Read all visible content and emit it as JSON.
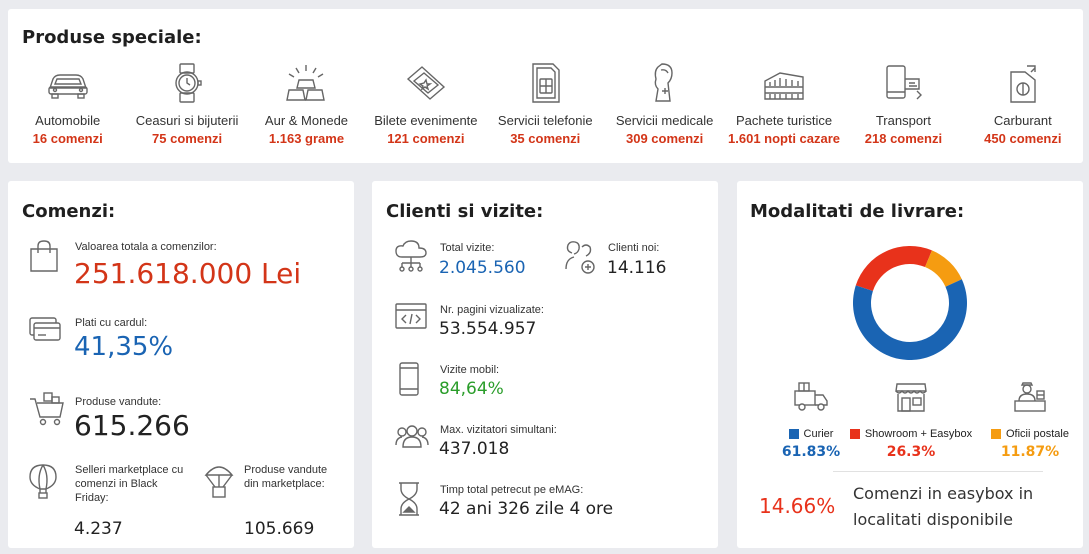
{
  "special": {
    "title": "Produse speciale:",
    "items": [
      {
        "name": "Automobile",
        "count": "16 comenzi",
        "icon": "car-icon"
      },
      {
        "name": "Ceasuri si bijuterii",
        "count": "75 comenzi",
        "icon": "watch-icon"
      },
      {
        "name": "Aur & Monede",
        "count": "1.163 grame",
        "icon": "gold-bars-icon"
      },
      {
        "name": "Bilete evenimente",
        "count": "121 comenzi",
        "icon": "ticket-icon"
      },
      {
        "name": "Servicii telefonie",
        "count": "35 comenzi",
        "icon": "sim-card-icon"
      },
      {
        "name": "Servicii medicale",
        "count": "309 comenzi",
        "icon": "medical-icon"
      },
      {
        "name": "Pachete turistice",
        "count": "1.601 nopti cazare",
        "icon": "colosseum-icon"
      },
      {
        "name": "Transport",
        "count": "218 comenzi",
        "icon": "transport-icon"
      },
      {
        "name": "Carburant",
        "count": "450 comenzi",
        "icon": "fuel-can-icon"
      }
    ]
  },
  "orders": {
    "title": "Comenzi:",
    "total_label": "Valoarea totala a comenzilor:",
    "total_value": "251.618.000 Lei",
    "card_label": "Plati cu cardul:",
    "card_value": "41,35%",
    "products_label": "Produse vandute:",
    "products_value": "615.266",
    "sellers_label": "Selleri marketplace cu comenzi in Black Friday:",
    "sellers_value": "4.237",
    "mp_label": "Produse vandute din marketplace:",
    "mp_value": "105.669"
  },
  "clients": {
    "title": "Clienti si vizite:",
    "visits_label": "Total vizite:",
    "visits_value": "2.045.560",
    "new_label": "Clienti noi:",
    "new_value": "14.116",
    "pages_label": "Nr. pagini vizualizate:",
    "pages_value": "53.554.957",
    "mobile_label": "Vizite mobil:",
    "mobile_value": "84,64%",
    "max_label": "Max. vizitatori simultani:",
    "max_value": "437.018",
    "time_label": "Timp total petrecut pe eMAG:",
    "time_value": "42 ani 326 zile 4 ore"
  },
  "delivery": {
    "title": "Modalitati de livrare:",
    "items": [
      {
        "name": "Curier",
        "pct": "61.83%",
        "value": 61.83,
        "color": "#1a64b3"
      },
      {
        "name": "Showroom + Easybox",
        "pct": "26.3%",
        "value": 26.3,
        "color": "#e8321b"
      },
      {
        "name": "Oficii postale",
        "pct": "11.87%",
        "value": 11.87,
        "color": "#f59c11"
      }
    ],
    "easybox_pct": "14.66%",
    "easybox_text": "Comenzi in easybox in localitati disponibile"
  }
}
